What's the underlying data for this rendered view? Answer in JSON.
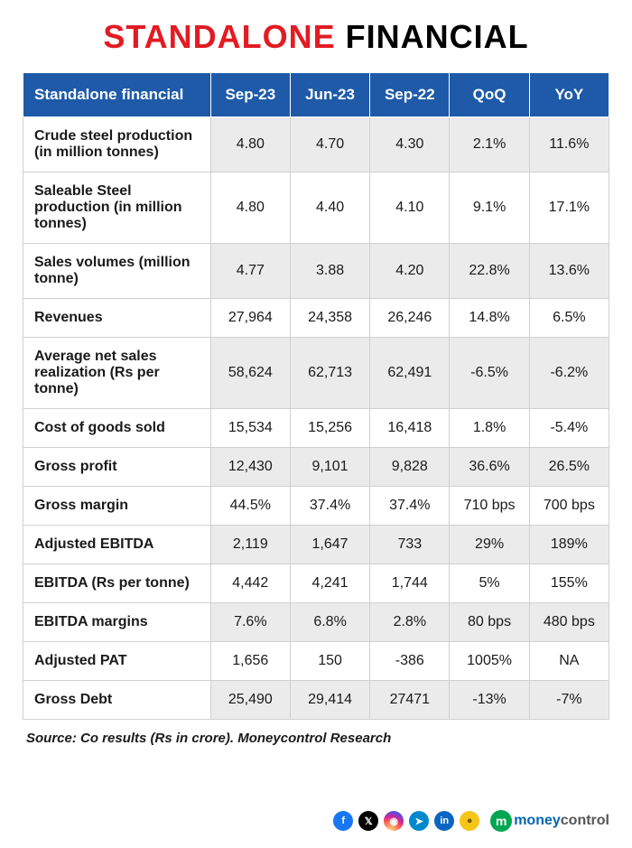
{
  "title": {
    "part1": "STANDALONE",
    "part2": "FINANCIAL",
    "part1_color": "#e31b23",
    "part2_color": "#000000"
  },
  "table": {
    "header_bg": "#1e5aa8",
    "header_text_color": "#ffffff",
    "alt_row_bg": "#ebebeb",
    "border_color": "#d0d0d0",
    "columns": [
      "Standalone financial",
      "Sep-23",
      "Jun-23",
      "Sep-22",
      "QoQ",
      "YoY"
    ],
    "rows": [
      [
        "Crude steel production (in million tonnes)",
        "4.80",
        "4.70",
        "4.30",
        "2.1%",
        "11.6%"
      ],
      [
        "Saleable Steel production (in million tonnes)",
        "4.80",
        "4.40",
        "4.10",
        "9.1%",
        "17.1%"
      ],
      [
        "Sales volumes (million tonne)",
        "4.77",
        "3.88",
        "4.20",
        "22.8%",
        "13.6%"
      ],
      [
        "Revenues",
        "27,964",
        "24,358",
        "26,246",
        "14.8%",
        "6.5%"
      ],
      [
        "Average net sales realization (Rs per tonne)",
        "58,624",
        "62,713",
        "62,491",
        "-6.5%",
        "-6.2%"
      ],
      [
        "Cost of goods sold",
        "15,534",
        "15,256",
        "16,418",
        "1.8%",
        "-5.4%"
      ],
      [
        "Gross profit",
        "12,430",
        "9,101",
        "9,828",
        "36.6%",
        "26.5%"
      ],
      [
        "Gross margin",
        "44.5%",
        "37.4%",
        "37.4%",
        "710 bps",
        "700 bps"
      ],
      [
        "Adjusted EBITDA",
        "2,119",
        "1,647",
        "733",
        "29%",
        "189%"
      ],
      [
        "EBITDA (Rs per tonne)",
        "4,442",
        "4,241",
        "1,744",
        "5%",
        "155%"
      ],
      [
        "EBITDA margins",
        "7.6%",
        "6.8%",
        "2.8%",
        "80 bps",
        "480 bps"
      ],
      [
        "Adjusted PAT",
        "1,656",
        "150",
        "-386",
        "1005%",
        "NA"
      ],
      [
        "Gross Debt",
        "25,490",
        "29,414",
        "27471",
        "-13%",
        "-7%"
      ]
    ]
  },
  "source": "Source: Co results (Rs in crore). Moneycontrol Research",
  "footer": {
    "icons": [
      {
        "name": "facebook",
        "glyph": "f",
        "bg": "#1877f2"
      },
      {
        "name": "x-twitter",
        "glyph": "𝕏",
        "bg": "#000000"
      },
      {
        "name": "instagram",
        "glyph": "◉",
        "bg": "gradient"
      },
      {
        "name": "telegram",
        "glyph": "➤",
        "bg": "#0088cc"
      },
      {
        "name": "linkedin",
        "glyph": "in",
        "bg": "#0a66c2"
      },
      {
        "name": "coin",
        "glyph": "●",
        "bg": "#f5c518"
      }
    ],
    "logo": {
      "m": "m",
      "money": "money",
      "control": "control"
    }
  }
}
